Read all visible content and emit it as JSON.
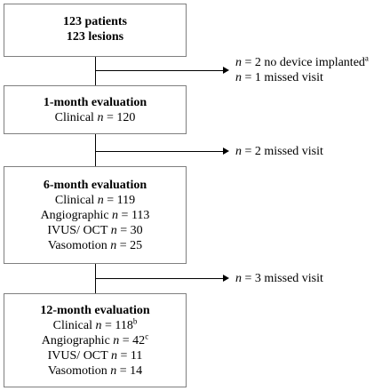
{
  "start": {
    "line1": "123 patients",
    "line2": "123 lesions"
  },
  "exclusion1": {
    "row1": {
      "n": "n",
      "text": " = 2 no device implanted",
      "sup": "a"
    },
    "row2": {
      "n": "n",
      "text": " = 1 missed visit"
    }
  },
  "month1": {
    "title": "1-month evaluation",
    "rows": [
      {
        "label": "Clinical ",
        "n": "n",
        "value": " = 120"
      }
    ]
  },
  "exclusion2": {
    "n": "n",
    "text": " = 2 missed visit"
  },
  "month6": {
    "title": "6-month evaluation",
    "rows": [
      {
        "label": "Clinical ",
        "n": "n",
        "value": " = 119"
      },
      {
        "label": "Angiographic ",
        "n": "n",
        "value": " = 113"
      },
      {
        "label": "IVUS/ OCT ",
        "n": "n",
        "value": " = 30"
      },
      {
        "label": "Vasomotion ",
        "n": "n",
        "value": " = 25"
      }
    ]
  },
  "exclusion3": {
    "n": "n",
    "text": " = 3 missed visit"
  },
  "month12": {
    "title": "12-month evaluation",
    "rows": [
      {
        "label": "Clinical ",
        "n": "n",
        "value": " = 118",
        "sup": "b"
      },
      {
        "label": "Angiographic ",
        "n": "n",
        "value": " = 42",
        "sup": "c"
      },
      {
        "label": "IVUS/ OCT ",
        "n": "n",
        "value": " = 11"
      },
      {
        "label": "Vasomotion ",
        "n": "n",
        "value": " = 14"
      }
    ]
  }
}
